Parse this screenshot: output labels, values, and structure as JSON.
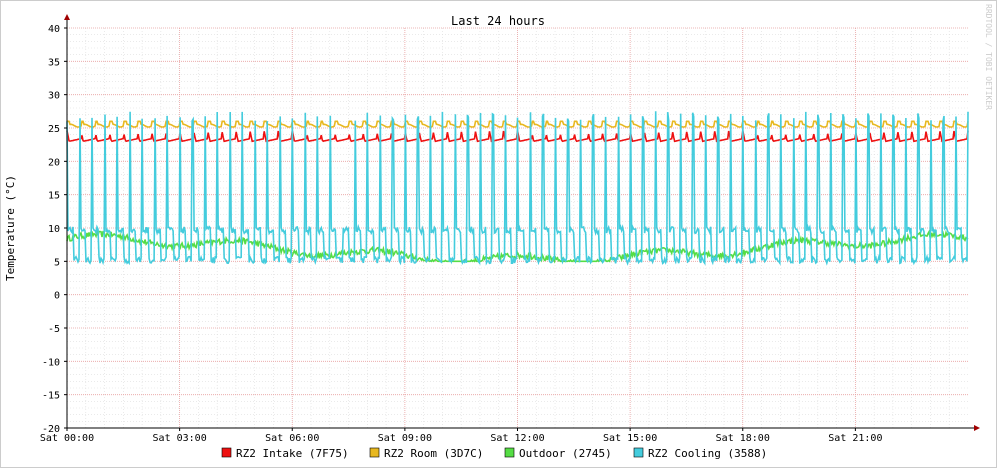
{
  "chart_data": {
    "type": "line",
    "title": "Last 24 hours",
    "ylabel": "Temperature (°C)",
    "watermark": "RRDTOOL / TOBI OETIKER",
    "ylim": [
      -20,
      40
    ],
    "yticks": [
      40,
      35,
      30,
      25,
      20,
      15,
      10,
      5,
      0,
      -5,
      -10,
      -15,
      -20
    ],
    "xlim_hours": [
      0,
      24
    ],
    "xticks": [
      {
        "hour": 0,
        "label": "Sat 00:00"
      },
      {
        "hour": 3,
        "label": "Sat 03:00"
      },
      {
        "hour": 6,
        "label": "Sat 06:00"
      },
      {
        "hour": 9,
        "label": "Sat 09:00"
      },
      {
        "hour": 12,
        "label": "Sat 12:00"
      },
      {
        "hour": 15,
        "label": "Sat 15:00"
      },
      {
        "hour": 18,
        "label": "Sat 18:00"
      },
      {
        "hour": 21,
        "label": "Sat 21:00"
      }
    ],
    "grid": true,
    "legend_position": "bottom",
    "series": [
      {
        "name": "RZ2 Intake (7F75)",
        "color": "#ee1111",
        "mean": 23.7,
        "min": 23.0,
        "max": 24.6
      },
      {
        "name": "RZ2 Room (3D7C)",
        "color": "#e8b820",
        "mean": 25.6,
        "min": 25.0,
        "max": 26.0
      },
      {
        "name": "Outdoor (2745)",
        "color": "#55dd44",
        "mean": 6.8,
        "min": 5.0,
        "max": 10.0
      },
      {
        "name": "RZ2 Cooling (3588)",
        "color": "#44ccdd",
        "mean": 9.0,
        "min": 4.2,
        "max": 27.5
      }
    ]
  }
}
